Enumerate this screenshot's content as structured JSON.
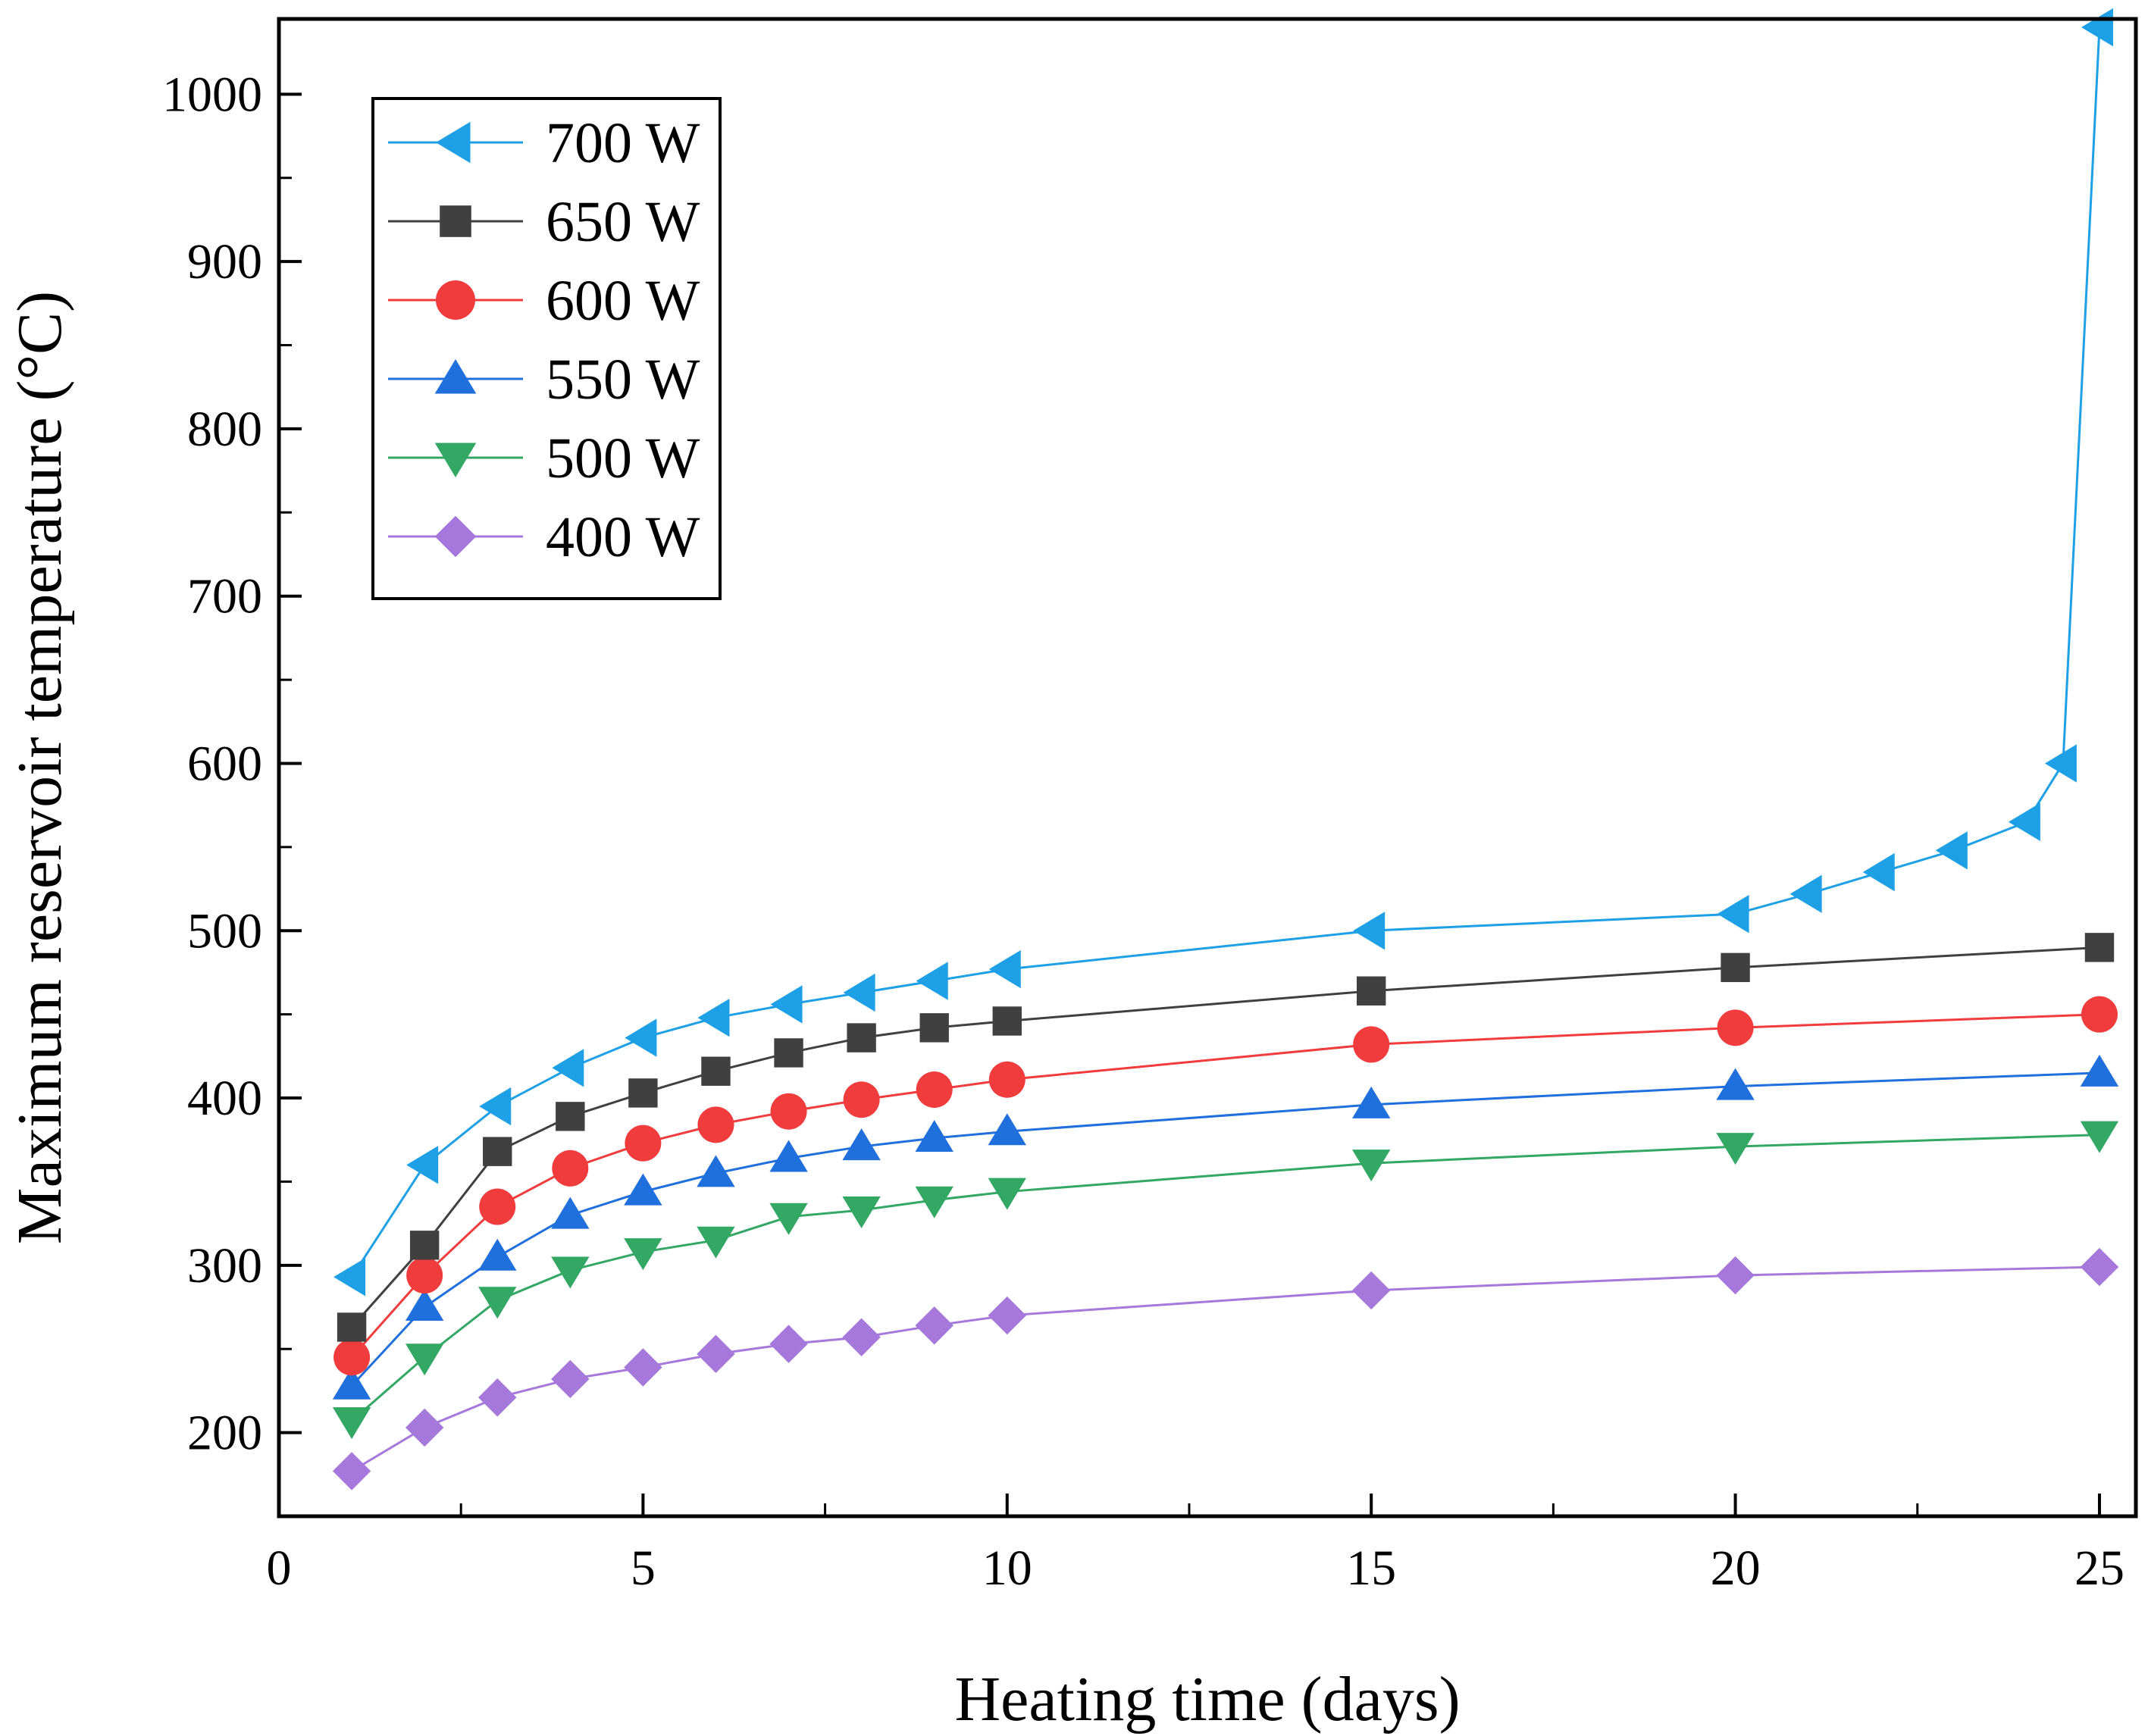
{
  "chart_data": {
    "type": "line",
    "title": "",
    "xlabel": "Heating time (days)",
    "ylabel": "Maximum reservoir temperature (°C)",
    "xlim": [
      0,
      25.5
    ],
    "ylim": [
      150,
      1045
    ],
    "xticks": [
      0,
      5,
      10,
      15,
      20,
      25
    ],
    "yticks": [
      200,
      300,
      400,
      500,
      600,
      700,
      800,
      900,
      1000
    ],
    "legend_position": "top-left",
    "series": [
      {
        "name": "700 W",
        "color": "#1ea0e6",
        "marker": "triangle-left",
        "x": [
          1,
          2,
          3,
          4,
          5,
          6,
          7,
          8,
          9,
          10,
          15,
          20,
          21,
          22,
          23,
          24,
          24.5,
          25
        ],
        "values": [
          293,
          360,
          395,
          418,
          436,
          448,
          456,
          463,
          470,
          477,
          500,
          510,
          522,
          535,
          548,
          565,
          600,
          1040
        ]
      },
      {
        "name": "650 W",
        "color": "#404040",
        "marker": "square",
        "x": [
          1,
          2,
          3,
          4,
          5,
          6,
          7,
          8,
          9,
          10,
          15,
          20,
          25
        ],
        "values": [
          263,
          312,
          368,
          389,
          403,
          416,
          427,
          436,
          442,
          446,
          464,
          478,
          490
        ]
      },
      {
        "name": "600 W",
        "color": "#f03c3c",
        "marker": "circle",
        "x": [
          1,
          2,
          3,
          4,
          5,
          6,
          7,
          8,
          9,
          10,
          15,
          20,
          25
        ],
        "values": [
          245,
          294,
          335,
          358,
          373,
          384,
          392,
          399,
          405,
          411,
          432,
          442,
          450
        ]
      },
      {
        "name": "550 W",
        "color": "#1f6fdc",
        "marker": "triangle-up",
        "x": [
          1,
          2,
          3,
          4,
          5,
          6,
          7,
          8,
          9,
          10,
          15,
          20,
          25
        ],
        "values": [
          228,
          275,
          305,
          330,
          344,
          355,
          364,
          371,
          376,
          380,
          396,
          407,
          415
        ]
      },
      {
        "name": "500 W",
        "color": "#32a864",
        "marker": "triangle-down",
        "x": [
          1,
          2,
          3,
          4,
          5,
          6,
          7,
          8,
          9,
          10,
          15,
          20,
          25
        ],
        "values": [
          207,
          245,
          279,
          297,
          308,
          315,
          329,
          333,
          339,
          344,
          361,
          371,
          378
        ]
      },
      {
        "name": "400 W",
        "color": "#a678dc",
        "marker": "diamond",
        "x": [
          1,
          2,
          3,
          4,
          5,
          6,
          7,
          8,
          9,
          10,
          15,
          20,
          25
        ],
        "values": [
          177,
          203,
          221,
          232,
          239,
          247,
          253,
          257,
          264,
          270,
          285,
          294,
          299
        ]
      }
    ]
  }
}
